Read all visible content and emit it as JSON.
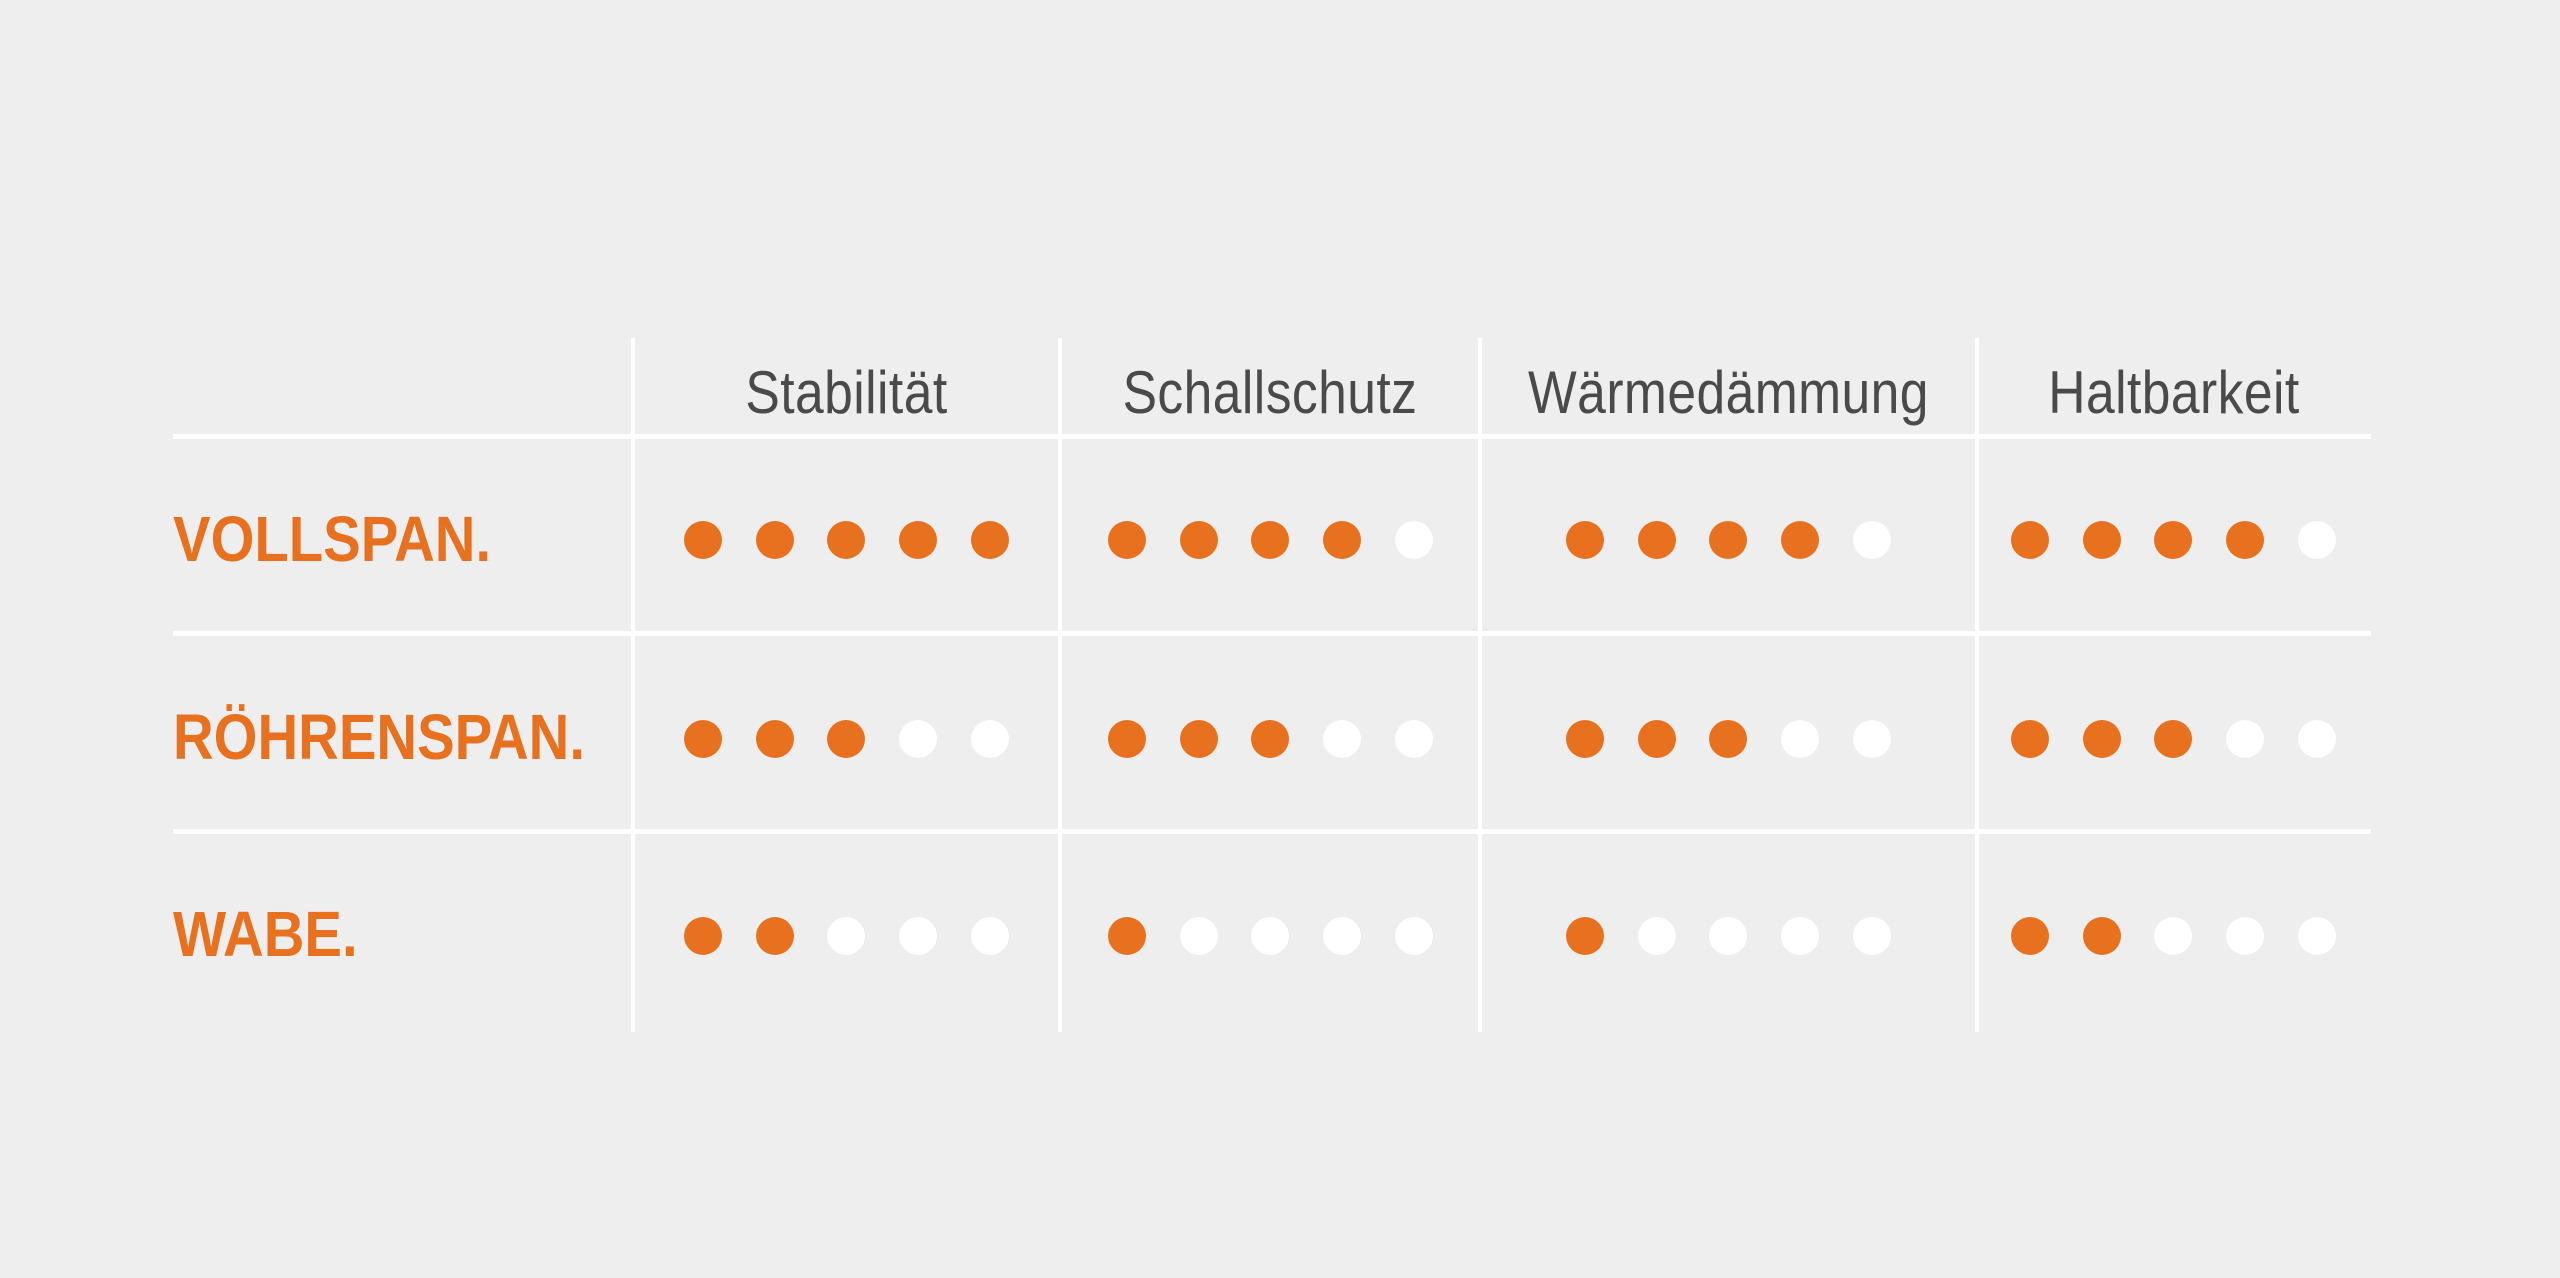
{
  "colors": {
    "background": "#eeeeee",
    "accent": "#e8711f",
    "header_text": "#4a4a4a",
    "empty_dot": "#ffffff",
    "grid_line": "#ffffff"
  },
  "table": {
    "max_rating": 5,
    "columns": [
      "Stabilität",
      "Schallschutz",
      "Wärmedämmung",
      "Haltbarkeit"
    ],
    "rows": [
      {
        "label": "VOLLSPAN.",
        "ratings": [
          5,
          4,
          4,
          4
        ]
      },
      {
        "label": "RÖHRENSPAN.",
        "ratings": [
          3,
          3,
          3,
          3
        ]
      },
      {
        "label": "WABE.",
        "ratings": [
          2,
          1,
          1,
          2
        ]
      }
    ]
  }
}
